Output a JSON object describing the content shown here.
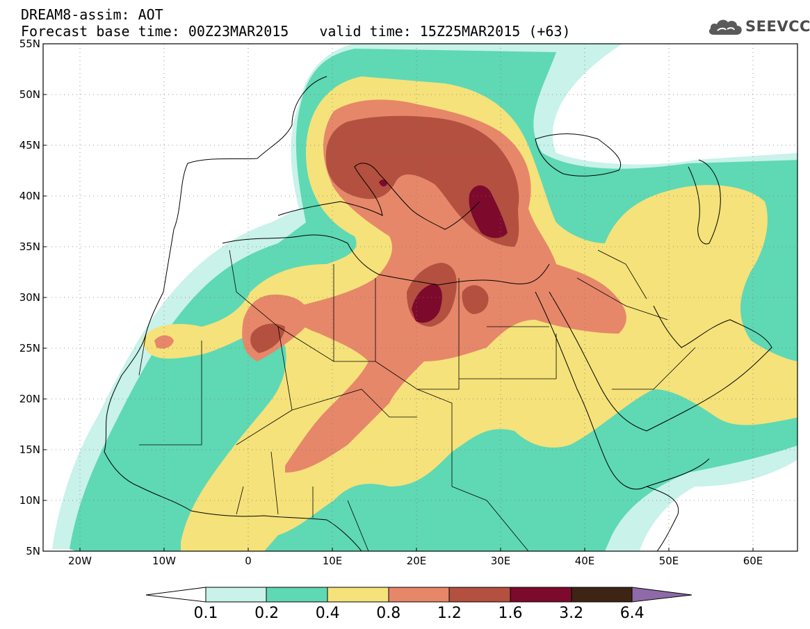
{
  "header": {
    "line1": "DREAM8-assim: AOT",
    "base_time": "Forecast base time: 00Z23MAR2015",
    "valid_time": "valid time: 15Z25MAR2015 (+63)"
  },
  "logo": {
    "text": "SEEVCCC",
    "icon": "cloud-icon"
  },
  "map": {
    "lon_range": [
      -25,
      65
    ],
    "lat_range": [
      5,
      55
    ],
    "lat_labels": [
      "55N",
      "50N",
      "45N",
      "40N",
      "35N",
      "30N",
      "25N",
      "20N",
      "15N",
      "10N",
      "5N"
    ],
    "lon_labels": [
      "20W",
      "10W",
      "0",
      "10E",
      "20E",
      "30E",
      "40E",
      "50E",
      "60E"
    ],
    "gridlines": "dotted"
  },
  "colorbar": {
    "labels": [
      "0.1",
      "0.2",
      "0.4",
      "0.8",
      "1.2",
      "1.6",
      "3.2",
      "6.4"
    ],
    "colors": [
      "#ffffff",
      "#c8f2ea",
      "#5fd8b4",
      "#f5e27a",
      "#e6876a",
      "#b3503f",
      "#7d0a2c",
      "#3e2414",
      "#8e6aa8"
    ]
  }
}
